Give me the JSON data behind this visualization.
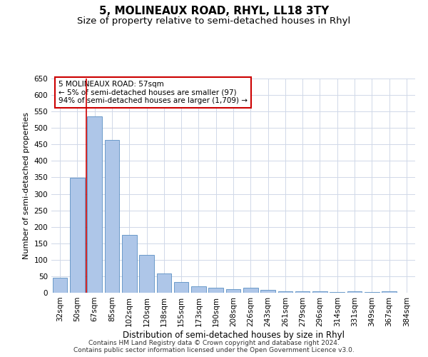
{
  "title": "5, MOLINEAUX ROAD, RHYL, LL18 3TY",
  "subtitle": "Size of property relative to semi-detached houses in Rhyl",
  "xlabel": "Distribution of semi-detached houses by size in Rhyl",
  "ylabel": "Number of semi-detached properties",
  "categories": [
    "32sqm",
    "50sqm",
    "67sqm",
    "85sqm",
    "102sqm",
    "120sqm",
    "138sqm",
    "155sqm",
    "173sqm",
    "190sqm",
    "208sqm",
    "226sqm",
    "243sqm",
    "261sqm",
    "279sqm",
    "296sqm",
    "314sqm",
    "331sqm",
    "349sqm",
    "367sqm",
    "384sqm"
  ],
  "values": [
    45,
    348,
    535,
    463,
    175,
    115,
    58,
    33,
    20,
    15,
    10,
    15,
    8,
    5,
    5,
    5,
    3,
    5,
    3,
    5,
    0
  ],
  "bar_color": "#aec6e8",
  "bar_edgecolor": "#5a8fc2",
  "highlight_index": 1,
  "highlight_line_color": "#cc0000",
  "annotation_line1": "5 MOLINEAUX ROAD: 57sqm",
  "annotation_line2": "← 5% of semi-detached houses are smaller (97)",
  "annotation_line3": "94% of semi-detached houses are larger (1,709) →",
  "annotation_box_color": "#ffffff",
  "annotation_box_edgecolor": "#cc0000",
  "ylim": [
    0,
    650
  ],
  "yticks": [
    0,
    50,
    100,
    150,
    200,
    250,
    300,
    350,
    400,
    450,
    500,
    550,
    600,
    650
  ],
  "background_color": "#ffffff",
  "grid_color": "#d0d8e8",
  "footer_line1": "Contains HM Land Registry data © Crown copyright and database right 2024.",
  "footer_line2": "Contains public sector information licensed under the Open Government Licence v3.0.",
  "title_fontsize": 11,
  "subtitle_fontsize": 9.5,
  "ylabel_fontsize": 8,
  "xlabel_fontsize": 8.5,
  "tick_fontsize": 7.5,
  "annotation_fontsize": 7.5,
  "footer_fontsize": 6.5
}
